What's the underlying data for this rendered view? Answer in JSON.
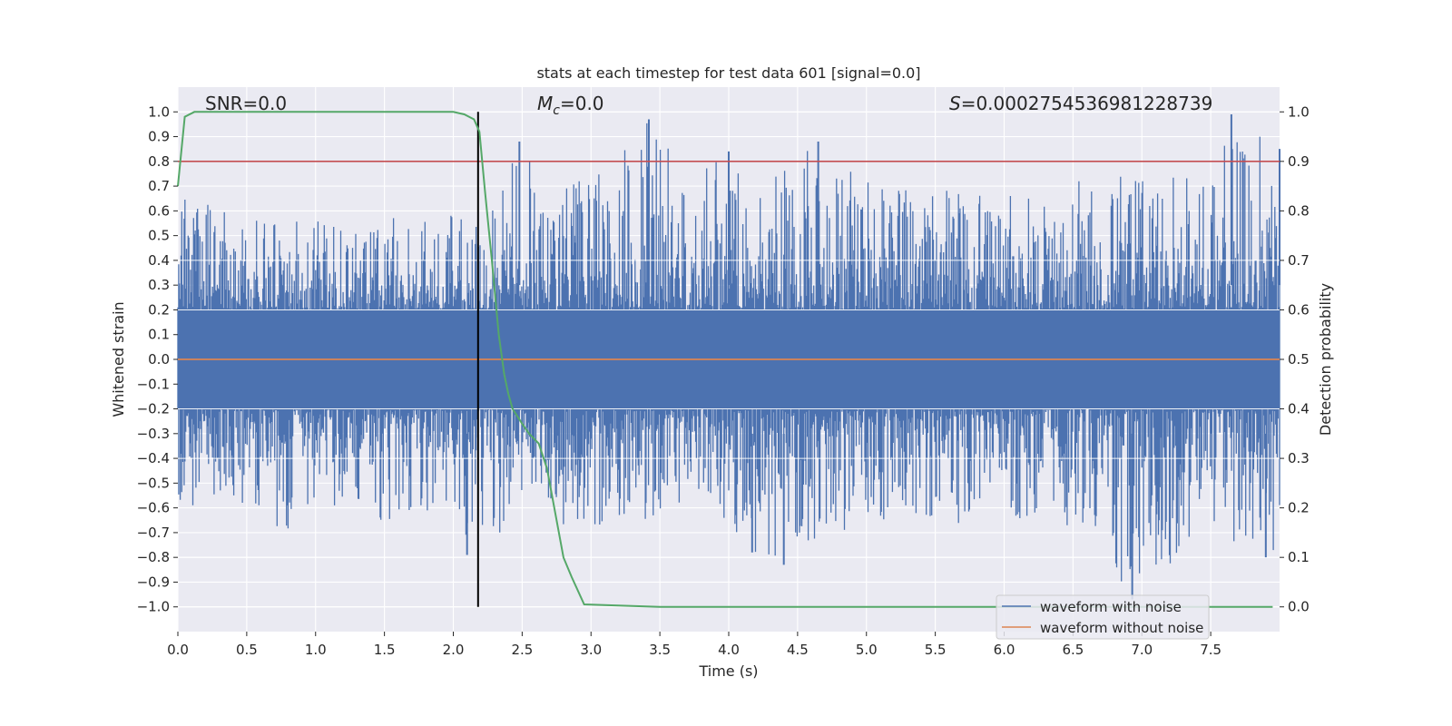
{
  "chart_data": {
    "type": "line",
    "title": "stats at each timestep for test data 601 [signal=0.0]",
    "xlabel": "Time (s)",
    "ylabel_left": "Whitened strain",
    "ylabel_right": "Detection probability",
    "xlim": [
      0.0,
      8.0
    ],
    "ylim_left": [
      -1.1,
      1.1
    ],
    "ylim_right": [
      -0.05,
      1.05
    ],
    "xticks": [
      "0.0",
      "0.5",
      "1.0",
      "1.5",
      "2.0",
      "2.5",
      "3.0",
      "3.5",
      "4.0",
      "4.5",
      "5.0",
      "5.5",
      "6.0",
      "6.5",
      "7.0",
      "7.5"
    ],
    "yticks_left": [
      "1.0",
      "0.9",
      "0.8",
      "0.7",
      "0.6",
      "0.5",
      "0.4",
      "0.3",
      "0.2",
      "0.1",
      "0.0",
      "−0.1",
      "−0.2",
      "−0.3",
      "−0.4",
      "−0.5",
      "−0.6",
      "−0.7",
      "−0.8",
      "−0.9",
      "−1.0"
    ],
    "yticks_right": [
      "1.0",
      "0.9",
      "0.8",
      "0.7",
      "0.6",
      "0.5",
      "0.4",
      "0.3",
      "0.2",
      "0.1",
      "0.0"
    ],
    "grid": true,
    "legend_position": "lower-right",
    "annotations": {
      "snr": "SNR=0.0",
      "mc_symbol": "M",
      "mc_sub": "c",
      "mc_value": "=0.0",
      "s_symbol": "S",
      "s_value": "=0.0002754536981228739"
    },
    "series": [
      {
        "name": "waveform with noise",
        "color": "#4c72b0",
        "note_envelope_upper": [
          [
            0.0,
            0.66
          ],
          [
            0.25,
            0.62
          ],
          [
            0.5,
            0.55
          ],
          [
            0.75,
            0.6
          ],
          [
            1.0,
            0.58
          ],
          [
            1.25,
            0.55
          ],
          [
            1.5,
            0.62
          ],
          [
            1.75,
            0.58
          ],
          [
            2.0,
            0.6
          ],
          [
            2.25,
            0.55
          ],
          [
            2.48,
            0.88
          ],
          [
            2.75,
            0.78
          ],
          [
            3.0,
            0.72
          ],
          [
            3.42,
            0.97
          ],
          [
            3.75,
            0.75
          ],
          [
            4.0,
            0.84
          ],
          [
            4.25,
            0.72
          ],
          [
            4.65,
            0.88
          ],
          [
            5.0,
            0.72
          ],
          [
            5.5,
            0.68
          ],
          [
            6.0,
            0.7
          ],
          [
            6.5,
            0.72
          ],
          [
            7.0,
            0.77
          ],
          [
            7.5,
            0.75
          ],
          [
            7.65,
            0.99
          ],
          [
            8.0,
            0.85
          ]
        ],
        "note_envelope_lower": [
          [
            0.0,
            -0.57
          ],
          [
            0.25,
            -0.62
          ],
          [
            0.5,
            -0.6
          ],
          [
            0.75,
            -0.71
          ],
          [
            1.0,
            -0.65
          ],
          [
            1.25,
            -0.62
          ],
          [
            1.5,
            -0.66
          ],
          [
            1.75,
            -0.62
          ],
          [
            2.0,
            -0.65
          ],
          [
            2.1,
            -0.79
          ],
          [
            2.5,
            -0.65
          ],
          [
            3.0,
            -0.68
          ],
          [
            3.5,
            -0.65
          ],
          [
            4.0,
            -0.69
          ],
          [
            4.17,
            -0.78
          ],
          [
            4.4,
            -0.83
          ],
          [
            5.0,
            -0.65
          ],
          [
            5.5,
            -0.66
          ],
          [
            6.0,
            -0.68
          ],
          [
            6.5,
            -0.67
          ],
          [
            6.93,
            -0.97
          ],
          [
            7.5,
            -0.7
          ],
          [
            7.9,
            -0.8
          ]
        ]
      },
      {
        "name": "waveform without noise",
        "color": "#dd8452",
        "x": [
          0.0,
          8.0
        ],
        "y": [
          0.0,
          0.0
        ]
      },
      {
        "name": "",
        "color": "#55a868",
        "axis": "right",
        "x": [
          0.0,
          0.05,
          0.12,
          0.3,
          1.0,
          1.5,
          2.0,
          2.08,
          2.15,
          2.19,
          2.23,
          2.28,
          2.33,
          2.37,
          2.4,
          2.43,
          2.5,
          2.55,
          2.62,
          2.68,
          2.74,
          2.8,
          2.86,
          2.95,
          3.5,
          4.0,
          5.0,
          6.0,
          7.0,
          7.95
        ],
        "y": [
          0.85,
          0.99,
          1.0,
          1.0,
          1.0,
          1.0,
          1.0,
          0.995,
          0.985,
          0.96,
          0.84,
          0.7,
          0.55,
          0.47,
          0.43,
          0.4,
          0.37,
          0.35,
          0.33,
          0.28,
          0.19,
          0.1,
          0.06,
          0.005,
          0.0,
          0.0,
          0.0,
          0.0,
          0.0,
          0.0
        ]
      }
    ],
    "threshold": {
      "axis": "right",
      "value": 0.9,
      "color": "#c44e52"
    },
    "vertical_marker": {
      "x": 2.18,
      "color": "#000000"
    }
  }
}
